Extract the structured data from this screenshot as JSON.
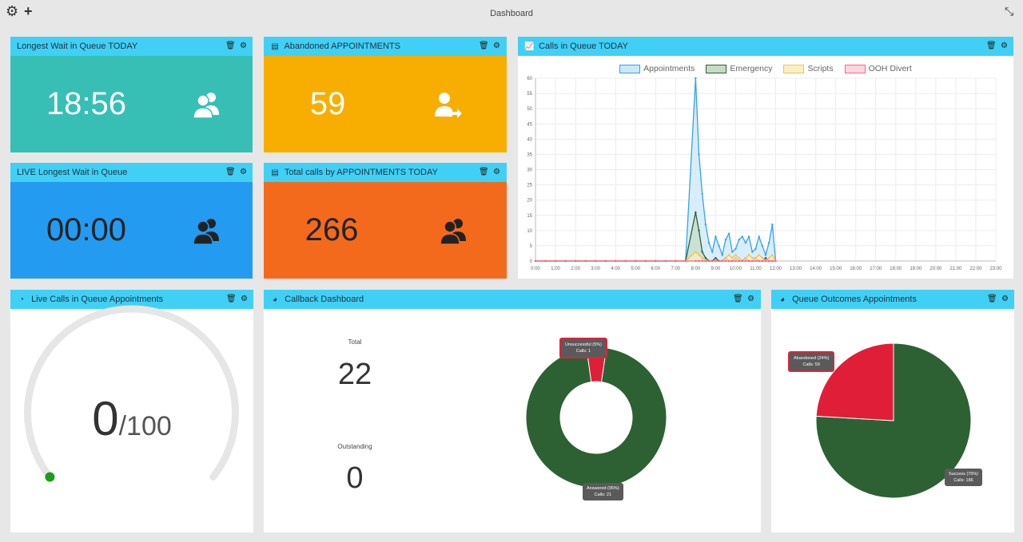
{
  "header": {
    "title": "Dashboard"
  },
  "toolbar": {
    "settings_icon": "gears-icon",
    "add_icon": "plus-icon",
    "fullscreen_icon": "compress-icon"
  },
  "panels": {
    "longest_wait": {
      "title": "Longest Wait in Queue TODAY",
      "value": "18:56",
      "color": "#37bfb5",
      "icon": "users-icon"
    },
    "abandoned": {
      "title": "Abandoned APPOINTMENTS",
      "value": "59",
      "color": "#f7ae00",
      "icon": "user-arrow-icon"
    },
    "live_wait": {
      "title": "LIVE Longest Wait in Queue",
      "value": "00:00",
      "color": "#239bf0",
      "icon": "users-icon"
    },
    "total_calls": {
      "title": "Total calls by APPOINTMENTS TODAY",
      "value": "266",
      "color": "#f46a1c",
      "icon": "users-icon"
    },
    "calls_in_queue": {
      "title": "Calls in Queue TODAY"
    },
    "live_calls": {
      "title": "Live Calls in Queue Appointments",
      "value": "0",
      "max": "/100"
    },
    "callback": {
      "title": "Callback Dashboard",
      "total_label": "Total",
      "total_value": "22",
      "outstanding_label": "Outstanding",
      "outstanding_value": "0",
      "tip_unsuccessful": "Unsuccessful (5%)",
      "tip_unsuccessful_calls": "Calls: 1",
      "tip_answered": "Answered (95%)",
      "tip_answered_calls": "Calls: 21"
    },
    "queue_outcomes": {
      "title": "Queue Outcomes Appointments",
      "tip_abandoned": "Abandoned (24%)",
      "tip_abandoned_calls": "Calls: 59",
      "tip_success": "Success (76%)",
      "tip_success_calls": "Calls: 186"
    }
  },
  "chart_data": [
    {
      "type": "area",
      "title": "Calls in Queue TODAY",
      "legend_position": "top",
      "x": [
        "0:00",
        "0:30",
        "1:00",
        "1:30",
        "2:00",
        "2:30",
        "3:00",
        "3:30",
        "4:00",
        "4:30",
        "5:00",
        "5:30",
        "6:00",
        "6:30",
        "7:00",
        "7:30",
        "8:00",
        "8:10",
        "8:20",
        "8:30",
        "8:40",
        "8:50",
        "9:00",
        "9:10",
        "9:20",
        "9:30",
        "9:40",
        "9:50",
        "10:00",
        "10:10",
        "10:20",
        "10:30",
        "10:40",
        "10:50",
        "11:00",
        "11:10",
        "11:20",
        "11:30",
        "11:40",
        "11:50",
        "12:00"
      ],
      "x_ticks": [
        "0:00",
        "1:00",
        "2:00",
        "3:00",
        "4:00",
        "5:00",
        "6:00",
        "7:00",
        "8:00",
        "9:00",
        "10:00",
        "11:00",
        "12:00",
        "13:00",
        "14:00",
        "15:00",
        "16:00",
        "17:00",
        "18:00",
        "19:00",
        "20:00",
        "21:00",
        "22:00",
        "23:00"
      ],
      "ylim": [
        0,
        60
      ],
      "y_ticks": [
        0,
        5,
        10,
        15,
        20,
        25,
        30,
        35,
        40,
        45,
        50,
        55,
        60
      ],
      "grid": true,
      "series": [
        {
          "name": "Appointments",
          "color": "#36a2eb",
          "fill": "#cbe8f8",
          "values": [
            0,
            0,
            0,
            0,
            0,
            0,
            0,
            0,
            0,
            0,
            0,
            0,
            0,
            0,
            0,
            0,
            60,
            35,
            22,
            12,
            6,
            3,
            8,
            5,
            2,
            7,
            9,
            3,
            4,
            7,
            8,
            6,
            8,
            3,
            4,
            8,
            5,
            2,
            6,
            12,
            0
          ]
        },
        {
          "name": "Emergency",
          "color": "#2f5f35",
          "fill": "#c6dcc6",
          "values": [
            0,
            0,
            0,
            0,
            0,
            0,
            0,
            0,
            0,
            0,
            0,
            0,
            0,
            0,
            0,
            0,
            16,
            10,
            3,
            1,
            0,
            0,
            1,
            0,
            0,
            1,
            0,
            0,
            1,
            0,
            0,
            1,
            0,
            0,
            1,
            0,
            0,
            1,
            0,
            0,
            0
          ]
        },
        {
          "name": "Scripts",
          "color": "#f0c44a",
          "fill": "#fbeec6",
          "values": [
            0,
            0,
            0,
            0,
            0,
            0,
            0,
            0,
            0,
            0,
            0,
            0,
            0,
            0,
            0,
            0,
            3,
            2,
            1,
            0,
            0,
            0,
            0,
            0,
            0,
            1,
            2,
            1,
            2,
            1,
            0,
            1,
            2,
            1,
            1,
            2,
            1,
            0,
            1,
            2,
            0
          ]
        },
        {
          "name": "OOH Divert",
          "color": "#ff6384",
          "fill": "#ffd6df",
          "values": [
            0,
            0,
            0,
            0,
            0,
            0,
            0,
            0,
            0,
            0,
            0,
            0,
            0,
            0,
            0,
            0,
            0,
            0,
            0,
            0,
            0,
            0,
            0,
            0,
            0,
            0,
            0,
            0,
            0,
            0,
            0,
            0,
            0,
            0,
            0,
            0,
            0,
            0,
            0,
            0,
            0
          ]
        }
      ]
    },
    {
      "type": "pie",
      "title": "Callback Dashboard",
      "categories": [
        "Unsuccessful",
        "Answered"
      ],
      "values": [
        1,
        21
      ],
      "colors": [
        "#e01e37",
        "#2d6134"
      ]
    },
    {
      "type": "pie",
      "title": "Queue Outcomes Appointments",
      "categories": [
        "Abandoned",
        "Success"
      ],
      "values": [
        59,
        186
      ],
      "colors": [
        "#e01e37",
        "#2d6134"
      ]
    }
  ]
}
